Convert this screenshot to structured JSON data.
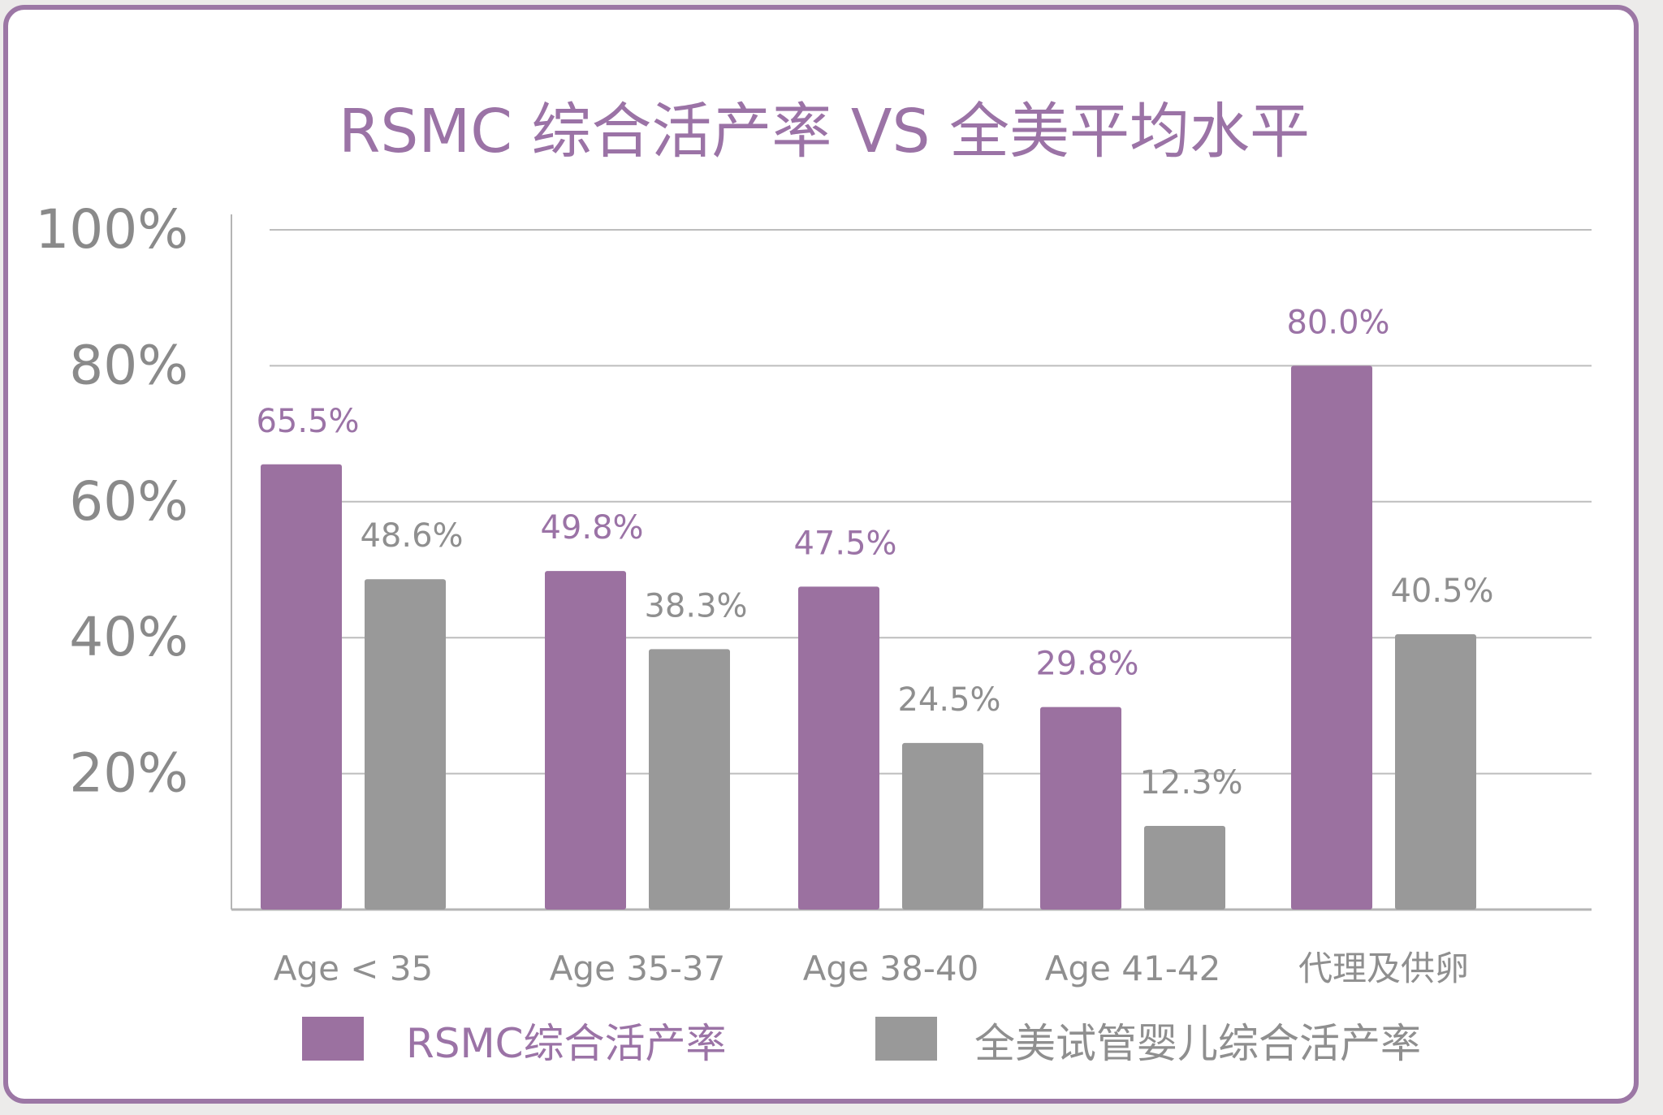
{
  "chart_data": {
    "type": "bar",
    "title": "RSMC 综合活产率  VS  全美平均水平",
    "categories": [
      "Age < 35",
      "Age 35-37",
      "Age 38-40",
      "Age 41-42",
      "代理及供卵"
    ],
    "series": [
      {
        "name": "RSMC综合活产率",
        "values": [
          65.5,
          49.8,
          47.5,
          29.8,
          80.0
        ],
        "labels": [
          "65.5%",
          "49.8%",
          "47.5%",
          "29.8%",
          "80.0%"
        ],
        "color": "#9b71a0"
      },
      {
        "name": "全美试管婴儿综合活产率",
        "values": [
          48.6,
          38.3,
          24.5,
          12.3,
          40.5
        ],
        "labels": [
          "48.6%",
          "38.3%",
          "24.5%",
          "12.3%",
          "40.5%"
        ],
        "color": "#999999"
      }
    ],
    "y_ticks": [
      "20%",
      "40%",
      "60%",
      "80%",
      "100%"
    ],
    "ylim": [
      0,
      100
    ],
    "grid": true,
    "legend_position": "bottom"
  }
}
